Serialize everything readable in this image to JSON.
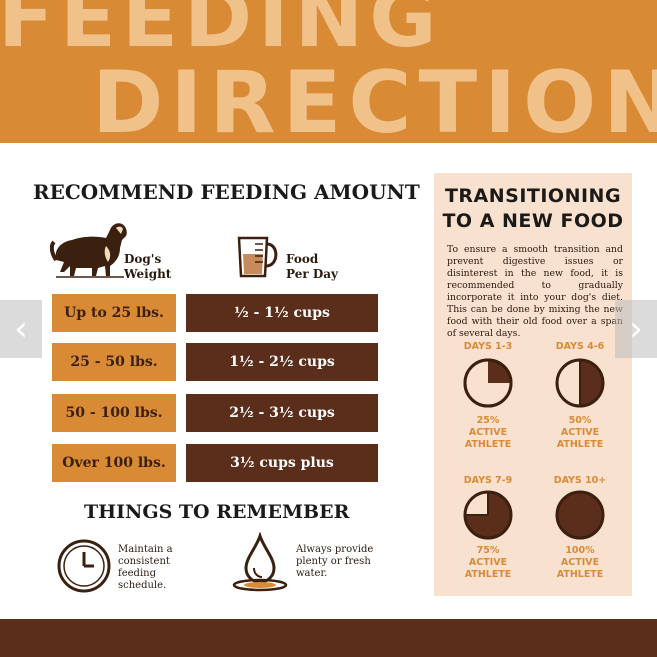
{
  "header": {
    "line1": "FEEDING",
    "line2": "DIRECTIONS"
  },
  "feeding": {
    "title": "RECOMMEND FEEDING AMOUNT",
    "weight_label_1": "Dog's",
    "weight_label_2": "Weight",
    "food_label_1": "Food",
    "food_label_2": "Per Day",
    "rows": [
      {
        "weight": "Up to 25 lbs.",
        "food": "½ - 1½ cups"
      },
      {
        "weight": "25 - 50 lbs.",
        "food": "1½ - 2½ cups"
      },
      {
        "weight": "50 - 100 lbs.",
        "food": "2½ - 3½ cups"
      },
      {
        "weight": "Over 100 lbs.",
        "food": "3½ cups plus"
      }
    ]
  },
  "remember": {
    "title": "THINGS TO REMEMBER",
    "item1": "Maintain a consistent feeding schedule.",
    "item2": "Always provide plenty or fresh water."
  },
  "transition": {
    "title_1": "TRANSITIONING",
    "title_2": "TO A NEW FOOD",
    "text": "To ensure a smooth transition and prevent digestive issues or disinterest in the new food, it is recommended to gradually incorporate it into your dog's diet. This can be done by mixing the new food with their old food over a span of several days.",
    "stages": [
      {
        "days": "DAYS 1-3",
        "pct": "25%",
        "line2": "ACTIVE",
        "line3": "ATHLETE",
        "fraction": 0.25
      },
      {
        "days": "DAYS 4-6",
        "pct": "50%",
        "line2": "ACTIVE",
        "line3": "ATHLETE",
        "fraction": 0.5
      },
      {
        "days": "DAYS 7-9",
        "pct": "75%",
        "line2": "ACTIVE",
        "line3": "ATHLETE",
        "fraction": 0.75
      },
      {
        "days": "DAYS 10+",
        "pct": "100%",
        "line2": "ACTIVE",
        "line3": "ATHLETE",
        "fraction": 1.0
      }
    ]
  },
  "colors": {
    "orange": "#d88a35",
    "brown": "#5a2e1b",
    "panel": "#f9e1cf"
  },
  "icons": {
    "prev": "chevron-left-icon",
    "next": "chevron-right-icon",
    "clock": "clock-icon",
    "water": "water-drop-icon",
    "dog": "dog-icon",
    "cup": "measuring-cup-icon"
  }
}
